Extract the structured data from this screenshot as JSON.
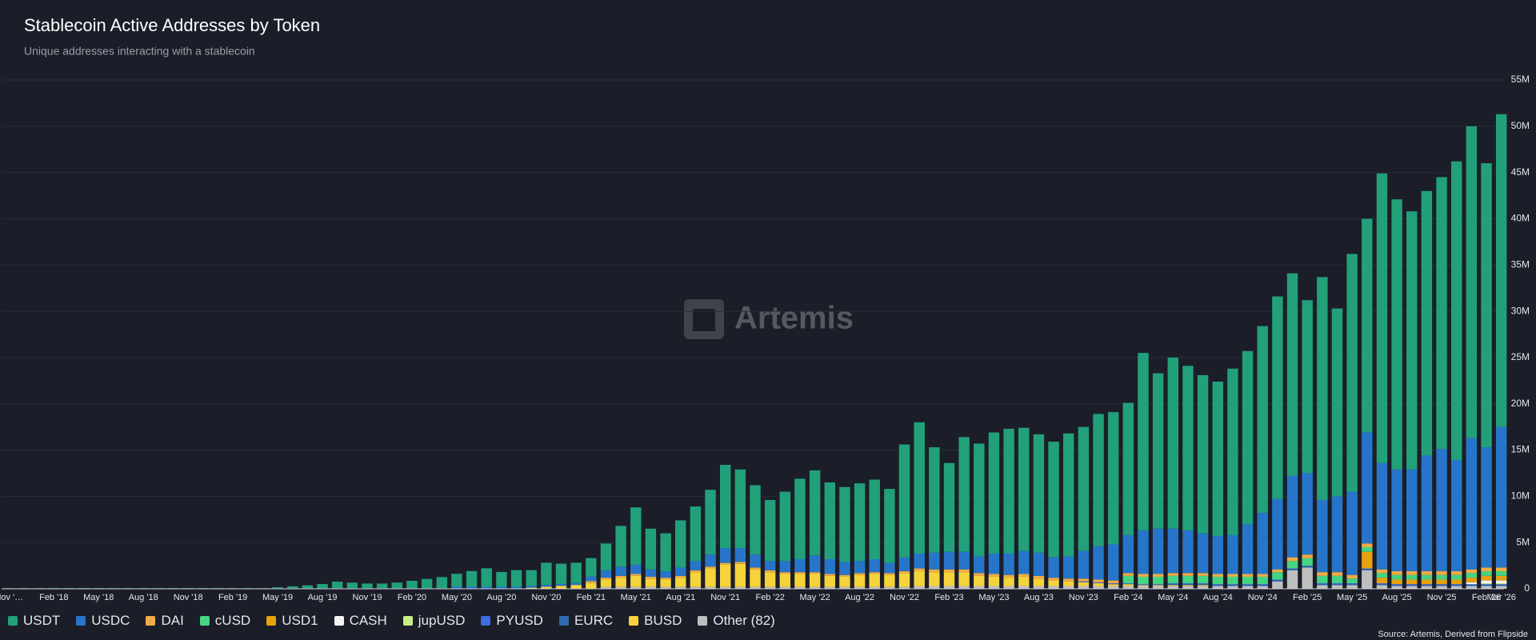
{
  "chart_data": {
    "type": "stacked-bar",
    "title": "Stablecoin Active Addresses by Token",
    "subtitle": "Unique addresses interacting with a stablecoin",
    "watermark": "Artemis",
    "source": "Source: Artemis, Derived from Flipside",
    "categories": [
      "Nov '…",
      null,
      null,
      "Feb '18",
      null,
      null,
      "May '18",
      null,
      null,
      "Aug '18",
      null,
      null,
      "Nov '18",
      null,
      null,
      "Feb '19",
      null,
      null,
      "May '19",
      null,
      null,
      "Aug '19",
      null,
      null,
      "Nov '19",
      null,
      null,
      "Feb '20",
      null,
      null,
      "May '20",
      null,
      null,
      "Aug '20",
      null,
      null,
      "Nov '20",
      null,
      null,
      "Feb '21",
      null,
      null,
      "May '21",
      null,
      null,
      "Aug '21",
      null,
      null,
      "Nov '21",
      null,
      null,
      "Feb '22",
      null,
      null,
      "May '22",
      null,
      null,
      "Aug '22",
      null,
      null,
      "Nov '22",
      null,
      null,
      "Feb '23",
      null,
      null,
      "May '23",
      null,
      null,
      "Aug '23",
      null,
      null,
      "Nov '23",
      null,
      null,
      "Feb '24",
      null,
      null,
      "May '24",
      null,
      null,
      "Aug '24",
      null,
      null,
      "Nov '24",
      null,
      null,
      "Feb '25",
      null,
      null,
      "May '25",
      null,
      null,
      "Aug '25",
      null,
      null,
      "Nov '25",
      null,
      null,
      "Feb '26",
      "Mar '26"
    ],
    "ylim": [
      0,
      55
    ],
    "yticks": [
      0,
      {
        "value": 5,
        "label": "5M"
      },
      {
        "value": 10,
        "label": "10M"
      },
      {
        "value": 15,
        "label": "15M"
      },
      {
        "value": 20,
        "label": "20M"
      },
      {
        "value": 25,
        "label": "25M"
      },
      {
        "value": 30,
        "label": "30M"
      },
      {
        "value": 35,
        "label": "35M"
      },
      {
        "value": 40,
        "label": "40M"
      },
      {
        "value": 45,
        "label": "45M"
      },
      {
        "value": 50,
        "label": "50M"
      },
      {
        "value": 55,
        "label": "55M"
      }
    ],
    "grid": true,
    "series": [
      {
        "name": "USDT",
        "color": "#22a07a",
        "values": [
          0.05,
          0.05,
          0.05,
          0.05,
          0.05,
          0.05,
          0.05,
          0.05,
          0.05,
          0.05,
          0.05,
          0.05,
          0.05,
          0.05,
          0.05,
          0.05,
          0.05,
          0.05,
          0.1,
          0.2,
          0.3,
          0.45,
          0.7,
          0.6,
          0.5,
          0.5,
          0.6,
          0.8,
          1.0,
          1.2,
          1.4,
          1.7,
          2.0,
          1.6,
          1.8,
          1.7,
          2.4,
          2.2,
          2.2,
          2.0,
          2.9,
          4.4,
          6.2,
          4.4,
          4.1,
          5.1,
          5.9,
          7.0,
          9.0,
          8.5,
          7.5,
          6.6,
          7.5,
          8.7,
          9.2,
          8.3,
          8.1,
          8.4,
          8.6,
          8.0,
          12.2,
          14.2,
          11.4,
          9.6,
          12.4,
          12.2,
          13.1,
          13.5,
          13.3,
          12.8,
          12.5,
          13.3,
          13.4,
          14.3,
          14.3,
          14.3,
          19.2,
          16.8,
          18.5,
          17.8,
          17.1,
          16.7,
          18.0,
          18.7,
          20.2,
          21.9,
          21.9,
          18.7,
          24.1,
          20.3,
          25.7,
          23.1,
          31.3,
          29.2,
          27.9,
          28.6,
          29.4,
          32.3,
          33.7,
          30.7,
          33.8
        ]
      },
      {
        "name": "USDC",
        "color": "#2775ca",
        "values": [
          0,
          0,
          0,
          0,
          0,
          0,
          0,
          0,
          0,
          0,
          0,
          0,
          0,
          0,
          0,
          0,
          0,
          0,
          0.05,
          0.05,
          0.05,
          0.05,
          0.05,
          0.05,
          0.05,
          0.05,
          0.05,
          0.05,
          0.05,
          0.05,
          0.2,
          0.2,
          0.2,
          0.2,
          0.2,
          0.2,
          0.2,
          0.2,
          0.2,
          0.5,
          0.8,
          1.0,
          1.0,
          0.8,
          0.7,
          0.9,
          1.0,
          1.3,
          1.6,
          1.5,
          1.4,
          1.0,
          1.2,
          1.4,
          1.8,
          1.6,
          1.4,
          1.3,
          1.4,
          1.1,
          1.5,
          1.6,
          1.8,
          1.9,
          1.9,
          1.8,
          2.2,
          2.3,
          2.5,
          2.5,
          2.2,
          2.4,
          3.0,
          3.6,
          3.9,
          4.1,
          4.7,
          4.9,
          4.8,
          4.6,
          4.3,
          4.1,
          4.2,
          5.4,
          6.6,
          7.6,
          8.8,
          8.8,
          7.8,
          8.2,
          9.0,
          12.0,
          11.5,
          11.0,
          11.0,
          12.5,
          13.2,
          12.0,
          14.2,
          13.0,
          15.2
        ]
      },
      {
        "name": "DAI",
        "color": "#f0ac45",
        "values": [
          0,
          0,
          0,
          0,
          0,
          0,
          0,
          0,
          0,
          0,
          0,
          0,
          0,
          0,
          0,
          0,
          0,
          0,
          0,
          0,
          0,
          0,
          0,
          0,
          0,
          0,
          0,
          0,
          0,
          0,
          0,
          0,
          0,
          0,
          0,
          0,
          0,
          0,
          0,
          0.2,
          0.2,
          0.2,
          0.2,
          0.2,
          0.2,
          0.2,
          0.2,
          0.2,
          0.2,
          0.2,
          0.2,
          0.2,
          0.2,
          0.2,
          0.2,
          0.2,
          0.2,
          0.2,
          0.2,
          0.2,
          0.2,
          0.3,
          0.3,
          0.3,
          0.3,
          0.3,
          0.3,
          0.3,
          0.3,
          0.3,
          0.3,
          0.3,
          0.3,
          0.3,
          0.3,
          0.3,
          0.3,
          0.3,
          0.3,
          0.3,
          0.3,
          0.3,
          0.3,
          0.3,
          0.3,
          0.3,
          0.4,
          0.4,
          0.4,
          0.4,
          0.4,
          0.4,
          0.4,
          0.4,
          0.4,
          0.4,
          0.4,
          0.4,
          0.4,
          0.4,
          0.4
        ]
      },
      {
        "name": "cUSD",
        "color": "#45d483",
        "values": [
          0,
          0,
          0,
          0,
          0,
          0,
          0,
          0,
          0,
          0,
          0,
          0,
          0,
          0,
          0,
          0,
          0,
          0,
          0,
          0,
          0,
          0,
          0,
          0,
          0,
          0,
          0,
          0,
          0,
          0,
          0,
          0,
          0,
          0,
          0,
          0,
          0,
          0,
          0,
          0,
          0,
          0,
          0,
          0,
          0,
          0,
          0,
          0,
          0,
          0,
          0,
          0,
          0,
          0,
          0,
          0,
          0,
          0,
          0,
          0,
          0,
          0,
          0,
          0,
          0,
          0,
          0,
          0,
          0,
          0,
          0,
          0,
          0,
          0,
          0,
          0.8,
          0.8,
          0.8,
          0.8,
          0.8,
          0.8,
          0.8,
          0.8,
          0.8,
          0.8,
          0.8,
          0.8,
          0.8,
          0.8,
          0.8,
          0.5,
          0.5,
          0.5,
          0.5,
          0.5,
          0.5,
          0.5,
          0.5,
          0.5,
          0.5,
          0.5
        ]
      },
      {
        "name": "USD1",
        "color": "#e6a20f",
        "values": [
          0,
          0,
          0,
          0,
          0,
          0,
          0,
          0,
          0,
          0,
          0,
          0,
          0,
          0,
          0,
          0,
          0,
          0,
          0,
          0,
          0,
          0,
          0,
          0,
          0,
          0,
          0,
          0,
          0,
          0,
          0,
          0,
          0,
          0,
          0,
          0,
          0,
          0,
          0,
          0,
          0,
          0,
          0,
          0,
          0,
          0,
          0,
          0,
          0,
          0,
          0,
          0,
          0,
          0,
          0,
          0,
          0,
          0,
          0,
          0,
          0,
          0,
          0,
          0,
          0,
          0,
          0,
          0,
          0,
          0,
          0,
          0,
          0,
          0,
          0,
          0,
          0,
          0,
          0,
          0,
          0,
          0,
          0,
          0,
          0,
          0,
          0,
          0,
          0,
          0,
          0,
          1.8,
          0.6,
          0.5,
          0.5,
          0.5,
          0.5,
          0.5,
          0.5,
          0.5,
          0.5
        ]
      },
      {
        "name": "CASH",
        "color": "#f2f2f2",
        "values": [
          0,
          0,
          0,
          0,
          0,
          0,
          0,
          0,
          0,
          0,
          0,
          0,
          0,
          0,
          0,
          0,
          0,
          0,
          0,
          0,
          0,
          0,
          0,
          0,
          0,
          0,
          0,
          0,
          0,
          0,
          0,
          0,
          0,
          0,
          0,
          0,
          0,
          0,
          0,
          0,
          0,
          0,
          0,
          0,
          0,
          0,
          0,
          0,
          0,
          0,
          0,
          0,
          0,
          0,
          0,
          0,
          0,
          0,
          0,
          0,
          0,
          0,
          0,
          0,
          0,
          0,
          0,
          0,
          0,
          0,
          0,
          0,
          0,
          0,
          0,
          0,
          0,
          0,
          0,
          0,
          0,
          0,
          0,
          0,
          0,
          0,
          0,
          0,
          0,
          0,
          0,
          0,
          0,
          0,
          0,
          0,
          0,
          0,
          0.2,
          0.3,
          0.3
        ]
      },
      {
        "name": "jupUSD",
        "color": "#c5ef84",
        "values": [
          0,
          0,
          0,
          0,
          0,
          0,
          0,
          0,
          0,
          0,
          0,
          0,
          0,
          0,
          0,
          0,
          0,
          0,
          0,
          0,
          0,
          0,
          0,
          0,
          0,
          0,
          0,
          0,
          0,
          0,
          0,
          0,
          0,
          0,
          0,
          0,
          0,
          0,
          0,
          0,
          0,
          0,
          0,
          0,
          0,
          0,
          0,
          0,
          0,
          0,
          0,
          0,
          0,
          0,
          0,
          0,
          0,
          0,
          0,
          0,
          0,
          0,
          0,
          0,
          0,
          0,
          0,
          0,
          0,
          0,
          0,
          0,
          0,
          0,
          0,
          0,
          0,
          0,
          0,
          0,
          0,
          0,
          0,
          0,
          0,
          0,
          0,
          0,
          0,
          0,
          0,
          0,
          0,
          0,
          0,
          0,
          0,
          0,
          0,
          0.1,
          0.1
        ]
      },
      {
        "name": "PYUSD",
        "color": "#3d6de0",
        "values": [
          0,
          0,
          0,
          0,
          0,
          0,
          0,
          0,
          0,
          0,
          0,
          0,
          0,
          0,
          0,
          0,
          0,
          0,
          0,
          0,
          0,
          0,
          0,
          0,
          0,
          0,
          0,
          0,
          0,
          0,
          0,
          0,
          0,
          0,
          0,
          0,
          0,
          0,
          0,
          0,
          0,
          0,
          0,
          0,
          0,
          0,
          0,
          0,
          0,
          0,
          0,
          0,
          0,
          0,
          0,
          0,
          0,
          0,
          0,
          0,
          0,
          0,
          0,
          0,
          0,
          0,
          0,
          0,
          0,
          0,
          0,
          0,
          0.1,
          0.1,
          0.1,
          0.1,
          0.1,
          0.1,
          0.1,
          0.1,
          0.1,
          0.1,
          0.1,
          0.1,
          0.1,
          0.1,
          0.1,
          0.1,
          0.1,
          0.1,
          0.1,
          0.1,
          0.1,
          0.1,
          0.1,
          0.1,
          0.1,
          0.1,
          0.1,
          0.1,
          0.1
        ]
      },
      {
        "name": "EURC",
        "color": "#2d6ab0",
        "values": [
          0,
          0,
          0,
          0,
          0,
          0,
          0,
          0,
          0,
          0,
          0,
          0,
          0,
          0,
          0,
          0,
          0,
          0,
          0,
          0,
          0,
          0,
          0,
          0,
          0,
          0,
          0,
          0,
          0,
          0,
          0,
          0,
          0,
          0,
          0,
          0,
          0,
          0,
          0,
          0,
          0,
          0,
          0,
          0,
          0,
          0,
          0,
          0,
          0,
          0,
          0,
          0,
          0,
          0,
          0,
          0,
          0,
          0,
          0,
          0,
          0,
          0,
          0,
          0,
          0,
          0,
          0,
          0,
          0,
          0,
          0,
          0,
          0,
          0,
          0,
          0,
          0,
          0,
          0.1,
          0.1,
          0.1,
          0.1,
          0.1,
          0.1,
          0.1,
          0.1,
          0.1,
          0.1,
          0.1,
          0.1,
          0.1,
          0.1,
          0.1,
          0.1,
          0.1,
          0.1,
          0.1,
          0.1,
          0.1,
          0.1,
          0.1
        ]
      },
      {
        "name": "BUSD",
        "color": "#f5d33b",
        "values": [
          0,
          0,
          0,
          0,
          0,
          0,
          0,
          0,
          0,
          0,
          0,
          0,
          0,
          0,
          0,
          0,
          0,
          0,
          0,
          0,
          0,
          0,
          0,
          0,
          0,
          0,
          0,
          0,
          0,
          0,
          0,
          0,
          0,
          0,
          0,
          0.1,
          0.2,
          0.3,
          0.4,
          0.6,
          0.8,
          1.0,
          1.2,
          0.9,
          0.8,
          1.0,
          1.6,
          2.0,
          2.4,
          2.5,
          1.9,
          1.6,
          1.4,
          1.4,
          1.4,
          1.2,
          1.1,
          1.3,
          1.4,
          1.3,
          1.5,
          1.6,
          1.5,
          1.5,
          1.5,
          1.1,
          1.0,
          0.9,
          1.0,
          0.8,
          0.6,
          0.5,
          0.4,
          0.3,
          0.2,
          0.2,
          0.1,
          0.1,
          0.1,
          0.1,
          0.1,
          0,
          0,
          0,
          0,
          0,
          0,
          0,
          0,
          0,
          0,
          0,
          0,
          0,
          0,
          0,
          0,
          0,
          0,
          0,
          0
        ]
      },
      {
        "name": "Other (82)",
        "color": "#bfbfbf",
        "values": [
          0.02,
          0.02,
          0.02,
          0.02,
          0.02,
          0.02,
          0.02,
          0.02,
          0.02,
          0.02,
          0.02,
          0.02,
          0.02,
          0.02,
          0.02,
          0.02,
          0.02,
          0.02,
          0.02,
          0.02,
          0.02,
          0.02,
          0.02,
          0.02,
          0.02,
          0.02,
          0.02,
          0.02,
          0.02,
          0.02,
          0.02,
          0.02,
          0.02,
          0.02,
          0.02,
          0.02,
          0.02,
          0.02,
          0.02,
          0.02,
          0.2,
          0.2,
          0.2,
          0.2,
          0.2,
          0.2,
          0.2,
          0.2,
          0.2,
          0.2,
          0.2,
          0.2,
          0.2,
          0.2,
          0.2,
          0.2,
          0.2,
          0.2,
          0.2,
          0.2,
          0.2,
          0.3,
          0.3,
          0.3,
          0.3,
          0.3,
          0.3,
          0.3,
          0.3,
          0.3,
          0.3,
          0.3,
          0.3,
          0.3,
          0.3,
          0.3,
          0.3,
          0.3,
          0.3,
          0.3,
          0.3,
          0.3,
          0.3,
          0.3,
          0.3,
          0.8,
          2.0,
          2.3,
          0.4,
          0.4,
          0.4,
          2.0,
          0.4,
          0.3,
          0.3,
          0.3,
          0.3,
          0.3,
          0.3,
          0.3,
          0.3
        ]
      }
    ]
  }
}
